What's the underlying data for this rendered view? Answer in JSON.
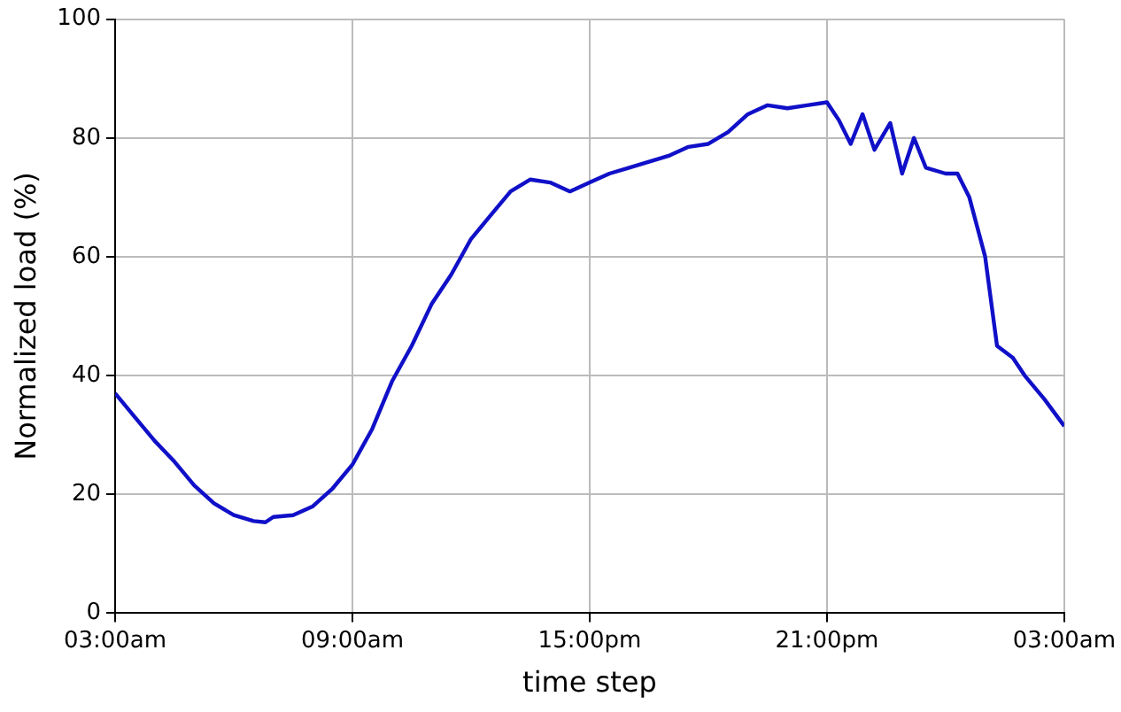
{
  "chart_data": {
    "type": "line",
    "xlabel": "time step",
    "ylabel": "Normalized load (%)",
    "x": [
      "--01-01T03:00",
      "--01-01T03:30",
      "--01-01T04:00",
      "--01-01T04:30",
      "--01-01T05:00",
      "--01-01T05:30",
      "--01-01T06:00",
      "--01-01T06:30",
      "--01-01T06:48",
      "--01-01T07:00",
      "--01-01T07:30",
      "--01-01T08:00",
      "--01-01T08:30",
      "--01-01T09:00",
      "--01-01T09:30",
      "--01-01T10:00",
      "--01-01T10:30",
      "--01-01T11:00",
      "--01-01T11:30",
      "--01-01T12:00",
      "--01-01T12:30",
      "--01-01T13:00",
      "--01-01T13:30",
      "--01-01T14:00",
      "--01-01T14:30",
      "--01-01T15:00",
      "--01-01T15:30",
      "--01-01T16:00",
      "--01-01T16:30",
      "--01-01T17:00",
      "--01-01T17:30",
      "--01-01T18:00",
      "--01-01T18:30",
      "--01-01T19:00",
      "--01-01T19:30",
      "--01-01T20:00",
      "--01-01T20:30",
      "--01-01T21:00",
      "--01-01T21:18",
      "--01-01T21:36",
      "--01-01T21:54",
      "--01-01T22:12",
      "--01-01T22:36",
      "--01-01T22:54",
      "--01-01T23:12",
      "--01-01T23:30",
      "--01-02T00:00",
      "--01-02T00:18",
      "--01-02T00:36",
      "--01-02T01:00",
      "--01-02T01:18",
      "--01-02T01:42",
      "--01-02T02:00",
      "--01-02T02:30",
      "--01-02T03:00"
    ],
    "series": [
      {
        "color": "#1010c8",
        "values": [
          37,
          33,
          29,
          25.5,
          21.5,
          18.5,
          16.5,
          15.5,
          15.3,
          16.2,
          16.5,
          18,
          21,
          25,
          31,
          39,
          45,
          52,
          57,
          63,
          67,
          71,
          73,
          72.5,
          71,
          72.5,
          74,
          75,
          76,
          77,
          78.5,
          79,
          81,
          84,
          85.5,
          85,
          85.5,
          86,
          83,
          79,
          84,
          78,
          82.5,
          74,
          80,
          75,
          74,
          74,
          70,
          60,
          45,
          43,
          40,
          36,
          31.5
        ]
      }
    ],
    "xlim": [
      "--01-01T03:00",
      "--01-02T03:00"
    ],
    "xticks": [
      {
        "value": "--01-01T03:00",
        "label": "03:00am"
      },
      {
        "value": "--01-01T09:00",
        "label": "09:00am"
      },
      {
        "value": "--01-01T15:00",
        "label": "15:00pm"
      },
      {
        "value": "--01-01T21:00",
        "label": "21:00pm"
      },
      {
        "value": "--01-02T03:00",
        "label": "03:00am"
      }
    ],
    "ylim": [
      0,
      100
    ],
    "yticks": [
      0,
      20,
      40,
      60,
      80,
      100
    ],
    "grid": true,
    "legend": false,
    "marker": "none",
    "line_style": "solid"
  }
}
